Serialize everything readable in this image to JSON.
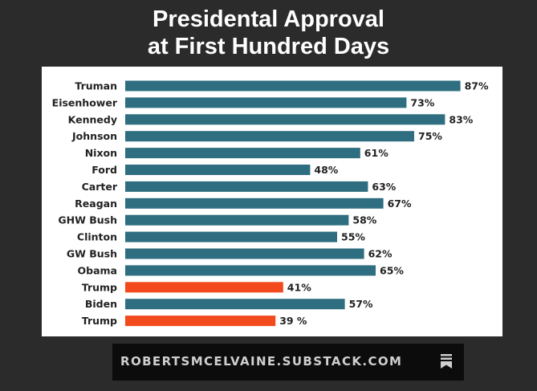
{
  "title_lines": [
    "Presidental Approval",
    "at First Hundred Days"
  ],
  "footer": {
    "site": "ROBERTSMCELVAINE.SUBSTACK.COM",
    "icon": "bookmark-icon"
  },
  "colors": {
    "background": "#2b2b2b",
    "panel": "#ffffff",
    "default_bar": "#2e6e80",
    "highlight_bar": "#f24a1c",
    "text": "#222222"
  },
  "chart_data": {
    "type": "bar",
    "orientation": "horizontal",
    "title": "Presidental Approval at First Hundred Days",
    "categories": [
      "Truman",
      "Eisenhower",
      "Kennedy",
      "Johnson",
      "Nixon",
      "Ford",
      "Carter",
      "Reagan",
      "GHW Bush",
      "Clinton",
      "GW Bush",
      "Obama",
      "Trump",
      "Biden",
      "Trump"
    ],
    "values": [
      87,
      73,
      83,
      75,
      61,
      48,
      63,
      67,
      58,
      55,
      62,
      65,
      41,
      57,
      39
    ],
    "value_labels": [
      "87%",
      "73%",
      "83%",
      "75%",
      "61%",
      "48%",
      "63%",
      "67%",
      "58%",
      "55%",
      "62%",
      "65%",
      "41%",
      "57%",
      "39 %"
    ],
    "highlighted": [
      false,
      false,
      false,
      false,
      false,
      false,
      false,
      false,
      false,
      false,
      false,
      false,
      true,
      false,
      true
    ],
    "unit": "%",
    "xlim": [
      0,
      100
    ],
    "grid": false,
    "legend": "none"
  }
}
